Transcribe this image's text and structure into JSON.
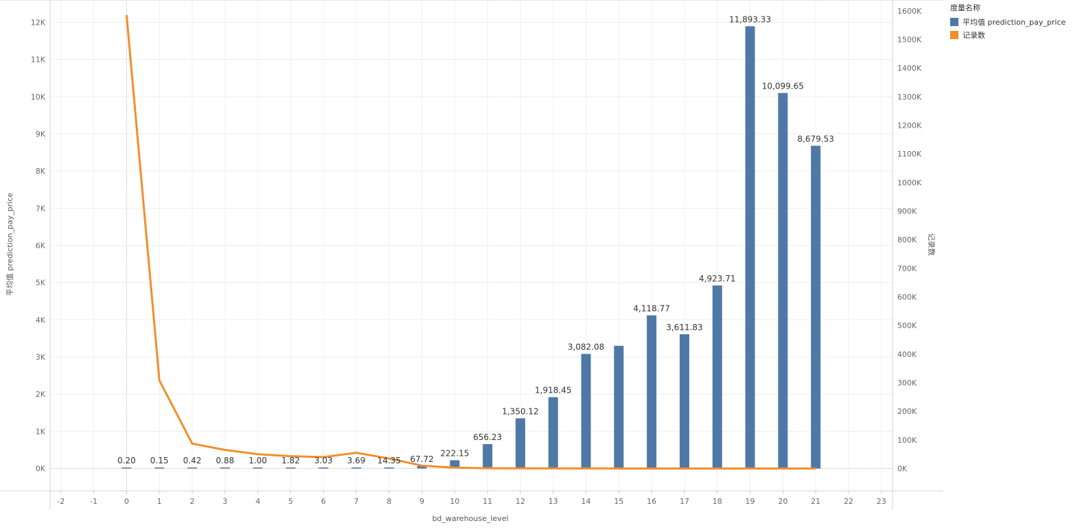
{
  "legend": {
    "title": "度量名称",
    "items": [
      {
        "label": "平均值 prediction_pay_price",
        "color": "#4e79a7"
      },
      {
        "label": "记录数",
        "color": "#f28e2b"
      }
    ]
  },
  "chart_data": {
    "type": "bar",
    "xlabel": "bd_warehouse_level",
    "ylabel": "平均值 prediction_pay_price",
    "y2label": "记录数",
    "xlim": [
      -2,
      23
    ],
    "x_ticks": [
      "-2",
      "-1",
      "0",
      "1",
      "2",
      "3",
      "4",
      "5",
      "6",
      "7",
      "8",
      "9",
      "10",
      "11",
      "12",
      "13",
      "14",
      "15",
      "16",
      "17",
      "18",
      "19",
      "20",
      "21",
      "22",
      "23"
    ],
    "ylim": [
      -600,
      12600
    ],
    "y_ticks": [
      0,
      1000,
      2000,
      3000,
      4000,
      5000,
      6000,
      7000,
      8000,
      9000,
      10000,
      11000,
      12000
    ],
    "y_tick_labels": [
      "0K",
      "1K",
      "2K",
      "3K",
      "4K",
      "5K",
      "6K",
      "7K",
      "8K",
      "9K",
      "10K",
      "11K",
      "12K"
    ],
    "y2lim": [
      -78000,
      1638000
    ],
    "y2_ticks": [
      0,
      100000,
      200000,
      300000,
      400000,
      500000,
      600000,
      700000,
      800000,
      900000,
      1000000,
      1100000,
      1200000,
      1300000,
      1400000,
      1500000,
      1600000
    ],
    "y2_tick_labels": [
      "0K",
      "100K",
      "200K",
      "300K",
      "400K",
      "500K",
      "600K",
      "700K",
      "800K",
      "900K",
      "1000K",
      "1100K",
      "1200K",
      "1300K",
      "1400K",
      "1500K",
      "1600K"
    ],
    "grid": true,
    "legend_position": "top-right",
    "series": [
      {
        "name": "平均值 prediction_pay_price",
        "type": "bar",
        "axis": "left",
        "color": "#4e79a7",
        "x": [
          0,
          1,
          2,
          3,
          4,
          5,
          6,
          7,
          8,
          9,
          10,
          11,
          12,
          13,
          14,
          15,
          16,
          17,
          18,
          19,
          20,
          21
        ],
        "values": [
          0.2,
          0.15,
          0.42,
          0.88,
          1.0,
          1.82,
          3.03,
          3.69,
          14.35,
          67.72,
          222.15,
          656.23,
          1350.12,
          1918.45,
          3082.08,
          3300,
          4118.77,
          3611.83,
          4923.71,
          11893.33,
          10099.65,
          8679.53
        ],
        "labels": [
          "0.20",
          "0.15",
          "0.42",
          "0.88",
          "1.00",
          "1.82",
          "3.03",
          "3.69",
          "14.35",
          "67.72",
          "222.15",
          "656.23",
          "1,350.12",
          "1,918.45",
          "3,082.08",
          "",
          "4,118.77",
          "3,611.83",
          "4,923.71",
          "11,893.33",
          "10,099.65",
          "8,679.53"
        ]
      },
      {
        "name": "记录数",
        "type": "line",
        "axis": "right",
        "color": "#f28e2b",
        "x": [
          0,
          1,
          2,
          3,
          4,
          5,
          6,
          7,
          8,
          9,
          10,
          11,
          12,
          13,
          14,
          15,
          16,
          17,
          18,
          19,
          20,
          21
        ],
        "values": [
          1585000,
          308000,
          87000,
          65000,
          50000,
          43000,
          40000,
          55000,
          35000,
          10000,
          3000,
          1000,
          500,
          300,
          200,
          150,
          120,
          100,
          80,
          50,
          40,
          30
        ]
      }
    ]
  }
}
